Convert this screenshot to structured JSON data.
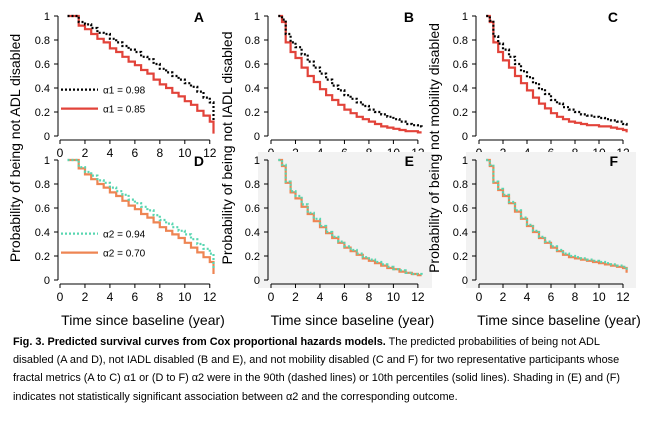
{
  "figure": {
    "xlabel": "Time since baseline (year)",
    "ylabels": {
      "A": "Probability of being not ADL disabled",
      "B": "Probability of being not IADL disabled",
      "C": "Probability of being not mobility disabled"
    },
    "colors": {
      "alpha1_high": "#000000",
      "alpha1_low": "#e2433a",
      "alpha2_high": "#58d6b0",
      "alpha2_low": "#ee8553",
      "shade": "#f2f2f2"
    }
  },
  "caption": {
    "title": "Fig. 3. Predicted survival curves from Cox proportional hazards models.",
    "body": " The predicted probabilities of being not ADL disabled (A and D), not IADL disabled (B and E), and not mobility disabled (C and F) for two representative participants whose fractal metrics (A to C) α1 or (D to F) α2 were in the 90th (dashed lines) or 10th percentiles (solid lines). Shading in (E) and (F) indicates not statistically significant association between α2 and the corresponding outcome."
  },
  "chart_data": [
    {
      "panel": "A",
      "type": "line",
      "shaded": false,
      "xlim": [
        0,
        12.5
      ],
      "ylim": [
        0,
        1
      ],
      "xticks": [
        "0",
        "2",
        "4",
        "6",
        "8",
        "10",
        "12"
      ],
      "yticks": [
        "0",
        "0.2",
        "0.4",
        "0.6",
        "0.8",
        "1"
      ],
      "legend": "left",
      "series": [
        {
          "name": "α1 = 0.98",
          "style": "dotted",
          "color": "#000000",
          "x": [
            0.6,
            1.2,
            1.5,
            2.0,
            2.5,
            3.0,
            3.5,
            4.0,
            4.5,
            5.0,
            5.5,
            6.0,
            6.5,
            7.0,
            7.5,
            8.0,
            8.5,
            9.0,
            9.5,
            10.0,
            10.5,
            11.0,
            11.5,
            12.0,
            12.3
          ],
          "y": [
            1.0,
            1.0,
            0.95,
            0.93,
            0.9,
            0.86,
            0.85,
            0.81,
            0.78,
            0.75,
            0.72,
            0.7,
            0.66,
            0.64,
            0.6,
            0.56,
            0.53,
            0.5,
            0.47,
            0.44,
            0.41,
            0.37,
            0.32,
            0.28,
            0.12
          ]
        },
        {
          "name": "α1 = 0.85",
          "style": "solid",
          "color": "#e2433a",
          "x": [
            0.6,
            1.2,
            1.5,
            2.0,
            2.5,
            3.0,
            3.5,
            4.0,
            4.5,
            5.0,
            5.5,
            6.0,
            6.5,
            7.0,
            7.5,
            8.0,
            8.5,
            9.0,
            9.5,
            10.0,
            10.5,
            11.0,
            11.5,
            12.0,
            12.3
          ],
          "y": [
            1.0,
            1.0,
            0.92,
            0.89,
            0.85,
            0.81,
            0.78,
            0.73,
            0.7,
            0.66,
            0.62,
            0.59,
            0.55,
            0.52,
            0.47,
            0.43,
            0.4,
            0.36,
            0.33,
            0.29,
            0.26,
            0.21,
            0.17,
            0.12,
            0.02
          ]
        }
      ]
    },
    {
      "panel": "B",
      "type": "line",
      "shaded": false,
      "xlim": [
        0,
        12.5
      ],
      "ylim": [
        0,
        1
      ],
      "xticks": [
        "0",
        "2",
        "4",
        "6",
        "8",
        "10",
        "12"
      ],
      "yticks": [
        "0",
        "0.2",
        "0.4",
        "0.6",
        "0.8",
        "1"
      ],
      "series": [
        {
          "style": "dotted",
          "color": "#000000",
          "x": [
            0.6,
            0.9,
            1.2,
            1.6,
            2.0,
            2.5,
            3.0,
            3.5,
            4.0,
            4.5,
            5.0,
            5.5,
            6.0,
            6.5,
            7.0,
            7.5,
            8.0,
            8.5,
            9.0,
            9.5,
            10.0,
            10.5,
            11.0,
            11.5,
            12.0,
            12.3
          ],
          "y": [
            1.0,
            0.97,
            0.85,
            0.78,
            0.74,
            0.68,
            0.62,
            0.57,
            0.52,
            0.47,
            0.42,
            0.38,
            0.34,
            0.31,
            0.28,
            0.25,
            0.22,
            0.2,
            0.18,
            0.16,
            0.14,
            0.12,
            0.1,
            0.09,
            0.08,
            0.07
          ]
        },
        {
          "style": "solid",
          "color": "#e2433a",
          "x": [
            0.6,
            0.9,
            1.2,
            1.6,
            2.0,
            2.5,
            3.0,
            3.5,
            4.0,
            4.5,
            5.0,
            5.5,
            6.0,
            6.5,
            7.0,
            7.5,
            8.0,
            8.5,
            9.0,
            9.5,
            10.0,
            10.5,
            11.0,
            11.5,
            12.0,
            12.3
          ],
          "y": [
            1.0,
            0.95,
            0.78,
            0.7,
            0.65,
            0.57,
            0.5,
            0.45,
            0.39,
            0.34,
            0.3,
            0.26,
            0.22,
            0.19,
            0.16,
            0.14,
            0.12,
            0.1,
            0.08,
            0.07,
            0.06,
            0.05,
            0.04,
            0.04,
            0.03,
            0.03
          ]
        }
      ]
    },
    {
      "panel": "C",
      "type": "line",
      "shaded": false,
      "xlim": [
        0,
        12.5
      ],
      "ylim": [
        0,
        1
      ],
      "xticks": [
        "0",
        "2",
        "4",
        "6",
        "8",
        "10",
        "12"
      ],
      "yticks": [
        "0",
        "0.2",
        "0.4",
        "0.6",
        "0.8",
        "1"
      ],
      "series": [
        {
          "style": "dotted",
          "color": "#000000",
          "x": [
            0.6,
            0.9,
            1.2,
            1.6,
            2.0,
            2.5,
            3.0,
            3.5,
            4.0,
            4.5,
            5.0,
            5.5,
            6.0,
            6.5,
            7.0,
            7.5,
            8.0,
            8.5,
            9.0,
            9.5,
            10.0,
            10.5,
            11.0,
            11.5,
            12.0,
            12.3
          ],
          "y": [
            1.0,
            0.96,
            0.83,
            0.77,
            0.72,
            0.66,
            0.6,
            0.54,
            0.49,
            0.44,
            0.39,
            0.35,
            0.3,
            0.27,
            0.24,
            0.22,
            0.2,
            0.18,
            0.17,
            0.16,
            0.15,
            0.14,
            0.13,
            0.12,
            0.1,
            0.07
          ]
        },
        {
          "style": "solid",
          "color": "#e2433a",
          "x": [
            0.6,
            0.9,
            1.2,
            1.6,
            2.0,
            2.5,
            3.0,
            3.5,
            4.0,
            4.5,
            5.0,
            5.5,
            6.0,
            6.5,
            7.0,
            7.5,
            8.0,
            8.5,
            9.0,
            9.5,
            10.0,
            10.5,
            11.0,
            11.5,
            12.0,
            12.3
          ],
          "y": [
            1.0,
            0.95,
            0.78,
            0.7,
            0.63,
            0.57,
            0.5,
            0.44,
            0.38,
            0.32,
            0.27,
            0.23,
            0.19,
            0.16,
            0.14,
            0.12,
            0.11,
            0.1,
            0.09,
            0.09,
            0.08,
            0.08,
            0.07,
            0.06,
            0.05,
            0.03
          ]
        }
      ]
    },
    {
      "panel": "D",
      "type": "line",
      "shaded": false,
      "xlim": [
        0,
        12.5
      ],
      "ylim": [
        0,
        1
      ],
      "xticks": [
        "0",
        "2",
        "4",
        "6",
        "8",
        "10",
        "12"
      ],
      "yticks": [
        "0",
        "0.2",
        "0.4",
        "0.6",
        "0.8",
        "1"
      ],
      "legend": "left",
      "series": [
        {
          "name": "α2 = 0.94",
          "style": "dotted",
          "color": "#58d6b0",
          "x": [
            0.6,
            1.2,
            1.5,
            2.0,
            2.5,
            3.0,
            3.5,
            4.0,
            4.5,
            5.0,
            5.5,
            6.0,
            6.5,
            7.0,
            7.5,
            8.0,
            8.5,
            9.0,
            9.5,
            10.0,
            10.5,
            11.0,
            11.5,
            12.0,
            12.3
          ],
          "y": [
            1.0,
            1.0,
            0.94,
            0.9,
            0.87,
            0.83,
            0.81,
            0.77,
            0.74,
            0.71,
            0.67,
            0.64,
            0.61,
            0.58,
            0.54,
            0.5,
            0.47,
            0.44,
            0.41,
            0.38,
            0.34,
            0.3,
            0.26,
            0.22,
            0.1
          ]
        },
        {
          "name": "α2 = 0.70",
          "style": "solid",
          "color": "#ee8553",
          "x": [
            0.6,
            1.2,
            1.5,
            2.0,
            2.5,
            3.0,
            3.5,
            4.0,
            4.5,
            5.0,
            5.5,
            6.0,
            6.5,
            7.0,
            7.5,
            8.0,
            8.5,
            9.0,
            9.5,
            10.0,
            10.5,
            11.0,
            11.5,
            12.0,
            12.3
          ],
          "y": [
            1.0,
            1.0,
            0.93,
            0.88,
            0.84,
            0.8,
            0.77,
            0.73,
            0.7,
            0.66,
            0.62,
            0.59,
            0.55,
            0.52,
            0.48,
            0.44,
            0.41,
            0.38,
            0.35,
            0.31,
            0.27,
            0.23,
            0.19,
            0.15,
            0.05
          ]
        }
      ]
    },
    {
      "panel": "E",
      "type": "line",
      "shaded": true,
      "xlim": [
        0,
        12.5
      ],
      "ylim": [
        0,
        1
      ],
      "xticks": [
        "0",
        "2",
        "4",
        "6",
        "8",
        "10",
        "12"
      ],
      "yticks": [
        "0",
        "0.2",
        "0.4",
        "0.6",
        "0.8",
        "1"
      ],
      "series": [
        {
          "style": "dotted",
          "color": "#58d6b0",
          "x": [
            0.6,
            0.9,
            1.2,
            1.6,
            2.0,
            2.5,
            3.0,
            3.5,
            4.0,
            4.5,
            5.0,
            5.5,
            6.0,
            6.5,
            7.0,
            7.5,
            8.0,
            8.5,
            9.0,
            9.5,
            10.0,
            10.5,
            11.0,
            11.5,
            12.0,
            12.3
          ],
          "y": [
            1.0,
            0.96,
            0.82,
            0.74,
            0.7,
            0.63,
            0.56,
            0.51,
            0.45,
            0.4,
            0.36,
            0.32,
            0.28,
            0.25,
            0.22,
            0.19,
            0.17,
            0.15,
            0.13,
            0.11,
            0.09,
            0.08,
            0.06,
            0.05,
            0.05,
            0.04
          ]
        },
        {
          "style": "solid",
          "color": "#ee8553",
          "x": [
            0.6,
            0.9,
            1.2,
            1.6,
            2.0,
            2.5,
            3.0,
            3.5,
            4.0,
            4.5,
            5.0,
            5.5,
            6.0,
            6.5,
            7.0,
            7.5,
            8.0,
            8.5,
            9.0,
            9.5,
            10.0,
            10.5,
            11.0,
            11.5,
            12.0,
            12.3
          ],
          "y": [
            1.0,
            0.95,
            0.81,
            0.73,
            0.68,
            0.61,
            0.55,
            0.49,
            0.44,
            0.39,
            0.35,
            0.31,
            0.27,
            0.24,
            0.21,
            0.18,
            0.16,
            0.14,
            0.12,
            0.1,
            0.09,
            0.07,
            0.06,
            0.05,
            0.04,
            0.04
          ]
        }
      ]
    },
    {
      "panel": "F",
      "type": "line",
      "shaded": true,
      "xlim": [
        0,
        12.5
      ],
      "ylim": [
        0,
        1
      ],
      "xticks": [
        "0",
        "2",
        "4",
        "6",
        "8",
        "10",
        "12"
      ],
      "yticks": [
        "0",
        "0.2",
        "0.4",
        "0.6",
        "0.8",
        "1"
      ],
      "series": [
        {
          "style": "dotted",
          "color": "#58d6b0",
          "x": [
            0.6,
            0.9,
            1.2,
            1.6,
            2.0,
            2.5,
            3.0,
            3.5,
            4.0,
            4.5,
            5.0,
            5.5,
            6.0,
            6.5,
            7.0,
            7.5,
            8.0,
            8.5,
            9.0,
            9.5,
            10.0,
            10.5,
            11.0,
            11.5,
            12.0,
            12.3
          ],
          "y": [
            1.0,
            0.96,
            0.82,
            0.76,
            0.71,
            0.65,
            0.58,
            0.52,
            0.46,
            0.41,
            0.36,
            0.32,
            0.28,
            0.25,
            0.22,
            0.2,
            0.19,
            0.18,
            0.17,
            0.16,
            0.15,
            0.14,
            0.13,
            0.12,
            0.11,
            0.07
          ]
        },
        {
          "style": "solid",
          "color": "#ee8553",
          "x": [
            0.6,
            0.9,
            1.2,
            1.6,
            2.0,
            2.5,
            3.0,
            3.5,
            4.0,
            4.5,
            5.0,
            5.5,
            6.0,
            6.5,
            7.0,
            7.5,
            8.0,
            8.5,
            9.0,
            9.5,
            10.0,
            10.5,
            11.0,
            11.5,
            12.0,
            12.3
          ],
          "y": [
            1.0,
            0.95,
            0.81,
            0.75,
            0.7,
            0.64,
            0.57,
            0.51,
            0.45,
            0.4,
            0.35,
            0.31,
            0.27,
            0.24,
            0.21,
            0.19,
            0.18,
            0.17,
            0.16,
            0.15,
            0.14,
            0.13,
            0.12,
            0.11,
            0.1,
            0.06
          ]
        }
      ]
    }
  ]
}
